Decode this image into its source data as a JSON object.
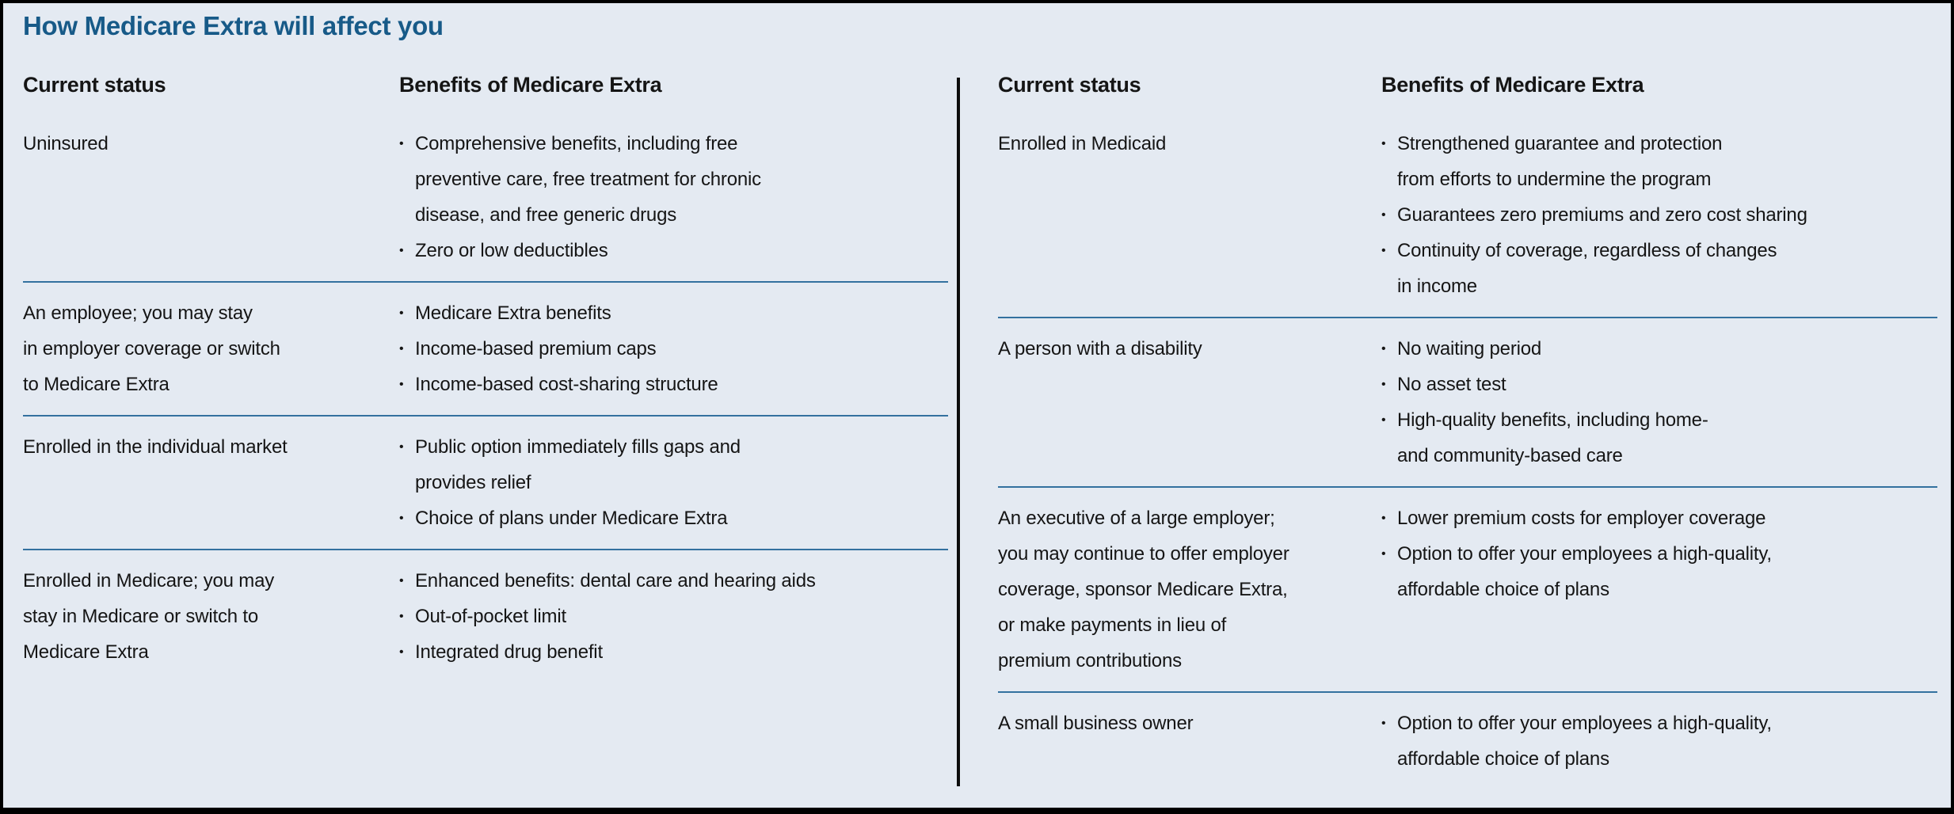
{
  "title": "How Medicare Extra will affect you",
  "bullet_char": "•",
  "colors": {
    "background": "#e4eaf2",
    "title_blue": "#175a88",
    "row_divider_blue": "#33719f",
    "frame_border_black": "#000000",
    "text": "#151515"
  },
  "panels": [
    {
      "status_header": "Current status",
      "benefits_header": "Benefits of Medicare Extra",
      "rows": [
        {
          "status": "Uninsured",
          "benefits": [
            "Comprehensive benefits, including free\npreventive care, free treatment for chronic\ndisease, and free generic drugs",
            "Zero or low deductibles"
          ]
        },
        {
          "status": "An employee; you may stay\nin employer coverage or switch\nto Medicare Extra",
          "benefits": [
            "Medicare Extra benefits",
            "Income-based premium caps",
            "Income-based cost-sharing structure"
          ]
        },
        {
          "status": "Enrolled in the individual market",
          "benefits": [
            "Public option immediately fills gaps and\nprovides relief",
            "Choice of plans under Medicare Extra"
          ]
        },
        {
          "status": "Enrolled in Medicare; you may\nstay in Medicare or switch to\nMedicare Extra",
          "benefits": [
            "Enhanced benefits: dental care and hearing aids",
            "Out-of-pocket limit",
            "Integrated drug benefit"
          ]
        }
      ]
    },
    {
      "status_header": "Current status",
      "benefits_header": "Benefits of Medicare Extra",
      "rows": [
        {
          "status": "Enrolled in Medicaid",
          "benefits": [
            "Strengthened guarantee and protection\nfrom efforts to undermine the program",
            "Guarantees zero premiums and zero cost sharing",
            "Continuity of coverage, regardless of changes\nin income"
          ]
        },
        {
          "status": "A person with a disability",
          "benefits": [
            "No waiting period",
            "No asset test",
            "High-quality benefits, including home-\nand community-based care"
          ]
        },
        {
          "status": "An executive of a large employer;\nyou may continue to offer employer\ncoverage, sponsor Medicare Extra,\nor make payments in lieu of\npremium contributions",
          "benefits": [
            "Lower premium costs for employer coverage",
            "Option to offer your employees a high-quality,\naffordable choice of plans"
          ]
        },
        {
          "status": "A small business owner",
          "benefits": [
            "Option to offer your employees a high-quality,\naffordable choice of plans"
          ]
        }
      ]
    }
  ]
}
